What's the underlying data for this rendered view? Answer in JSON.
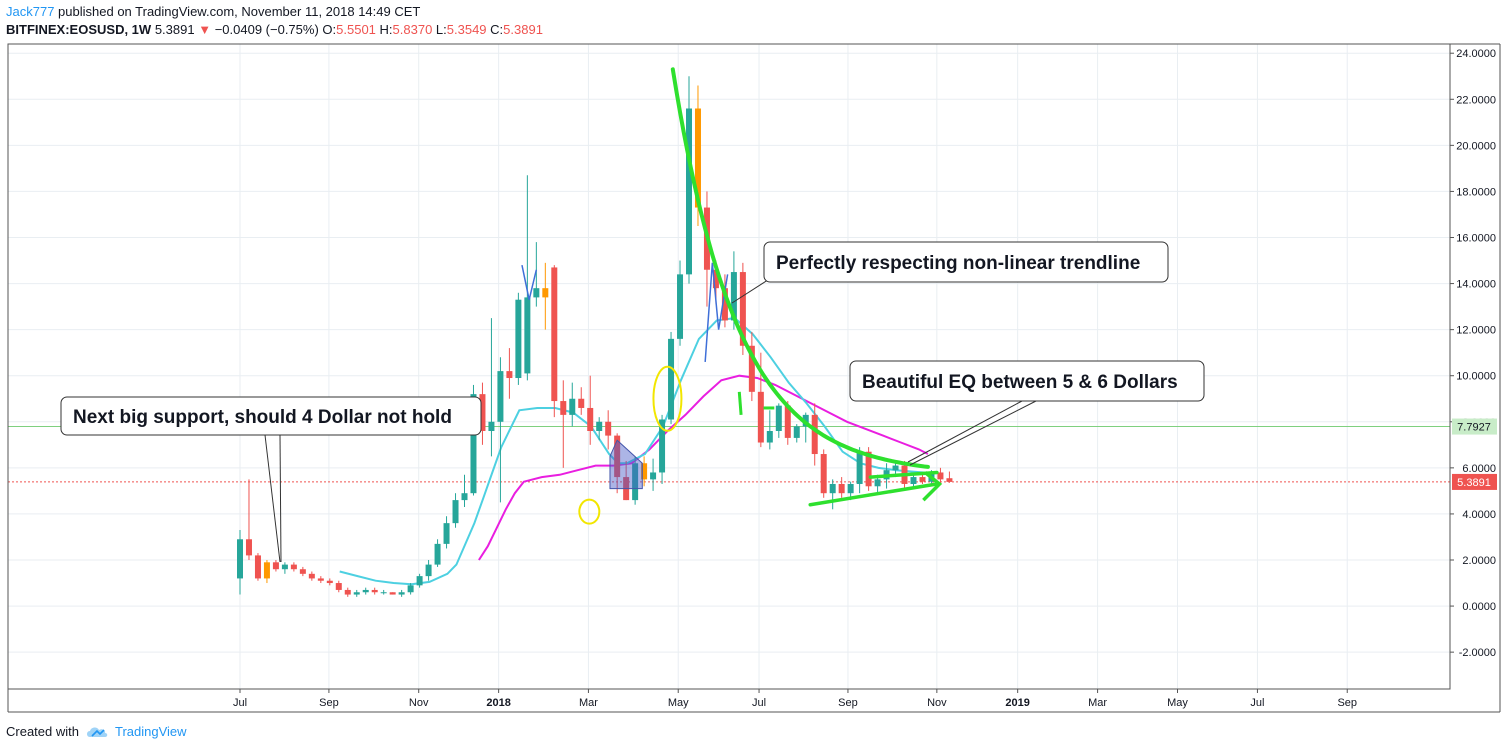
{
  "header": {
    "author": "Jack777",
    "published": "published on TradingView.com, November 11, 2018 14:49 CET",
    "symbol": "BITFINEX:EOSUSD, 1W",
    "last": "5.3891",
    "change": "−0.0409 (−0.75%)",
    "o_label": "O:",
    "o_value": "5.5501",
    "h_label": "H:",
    "h_value": "5.8370",
    "l_label": "L:",
    "l_value": "5.3549",
    "c_label": "C:",
    "c_value": "5.3891",
    "down_arrow_icon": "triangle-down-icon"
  },
  "footer": {
    "created_with": "Created with",
    "brand": "TradingView",
    "logo_icon": "tradingview-cloud-icon"
  },
  "price_labels": {
    "current": "5.3891",
    "support": "7.7927"
  },
  "annotations": {
    "support": "Next big support, should 4 Dollar not hold",
    "trendline": "Perfectly respecting non-linear trendline",
    "eq": "Beautiful EQ between 5 & 6 Dollars"
  },
  "colors": {
    "up": "#26a69a",
    "down": "#ef5350",
    "highlight": "#ff9800",
    "ma_short": "#4dd0e1",
    "ma_long": "#e91ee0",
    "trend": "#2ee02e",
    "grid": "#e9eef2"
  },
  "chart_data": {
    "type": "candlestick",
    "ylim": [
      -3.6,
      24.4
    ],
    "y_ticks": [
      -2,
      0,
      2,
      4,
      6,
      8,
      10,
      12,
      14,
      16,
      18,
      20,
      22,
      24
    ],
    "y_tick_labels": [
      "-2.0000",
      "0.0000",
      "2.0000",
      "4.0000",
      "6.0000",
      "8.0000",
      "10.0000",
      "12.0000",
      "14.0000",
      "16.0000",
      "18.0000",
      "20.0000",
      "22.0000",
      "24.0000"
    ],
    "x_ticks": [
      {
        "label": "Jul",
        "week": 0
      },
      {
        "label": "Sep",
        "week": 9.9
      },
      {
        "label": "Nov",
        "week": 19.9
      },
      {
        "label": "2018",
        "week": 28.8
      },
      {
        "label": "Mar",
        "week": 38.8
      },
      {
        "label": "May",
        "week": 48.8
      },
      {
        "label": "Jul",
        "week": 57.8
      },
      {
        "label": "Sep",
        "week": 67.7
      },
      {
        "label": "Nov",
        "week": 77.6
      },
      {
        "label": "2019",
        "week": 86.6
      },
      {
        "label": "Mar",
        "week": 95.5
      },
      {
        "label": "May",
        "week": 104.4
      },
      {
        "label": "Jul",
        "week": 113.3
      },
      {
        "label": "Sep",
        "week": 123.3
      }
    ],
    "candles": [
      {
        "o": 1.2,
        "h": 3.3,
        "l": 0.5,
        "c": 2.9
      },
      {
        "o": 2.9,
        "h": 5.5,
        "l": 2.0,
        "c": 2.2
      },
      {
        "o": 2.2,
        "h": 2.3,
        "l": 1.1,
        "c": 1.2
      },
      {
        "o": 1.2,
        "h": 2.0,
        "l": 1.0,
        "c": 1.9
      },
      {
        "o": 1.9,
        "h": 2.0,
        "l": 1.5,
        "c": 1.6
      },
      {
        "o": 1.6,
        "h": 1.9,
        "l": 1.4,
        "c": 1.8
      },
      {
        "o": 1.8,
        "h": 1.9,
        "l": 1.5,
        "c": 1.6
      },
      {
        "o": 1.6,
        "h": 1.7,
        "l": 1.3,
        "c": 1.4
      },
      {
        "o": 1.4,
        "h": 1.5,
        "l": 1.1,
        "c": 1.2
      },
      {
        "o": 1.2,
        "h": 1.3,
        "l": 1.0,
        "c": 1.1
      },
      {
        "o": 1.1,
        "h": 1.2,
        "l": 0.9,
        "c": 1.0
      },
      {
        "o": 1.0,
        "h": 1.1,
        "l": 0.6,
        "c": 0.7
      },
      {
        "o": 0.7,
        "h": 0.8,
        "l": 0.4,
        "c": 0.5
      },
      {
        "o": 0.5,
        "h": 0.7,
        "l": 0.4,
        "c": 0.6
      },
      {
        "o": 0.6,
        "h": 0.8,
        "l": 0.5,
        "c": 0.7
      },
      {
        "o": 0.7,
        "h": 0.8,
        "l": 0.5,
        "c": 0.6
      },
      {
        "o": 0.6,
        "h": 0.7,
        "l": 0.5,
        "c": 0.6
      },
      {
        "o": 0.6,
        "h": 0.6,
        "l": 0.5,
        "c": 0.5
      },
      {
        "o": 0.5,
        "h": 0.7,
        "l": 0.4,
        "c": 0.6
      },
      {
        "o": 0.6,
        "h": 1.0,
        "l": 0.5,
        "c": 0.9
      },
      {
        "o": 0.9,
        "h": 1.4,
        "l": 0.8,
        "c": 1.3
      },
      {
        "o": 1.3,
        "h": 2.0,
        "l": 1.1,
        "c": 1.8
      },
      {
        "o": 1.8,
        "h": 2.9,
        "l": 1.7,
        "c": 2.7
      },
      {
        "o": 2.7,
        "h": 3.9,
        "l": 2.5,
        "c": 3.6
      },
      {
        "o": 3.6,
        "h": 4.9,
        "l": 3.4,
        "c": 4.6
      },
      {
        "o": 4.6,
        "h": 5.7,
        "l": 4.3,
        "c": 4.9
      },
      {
        "o": 4.9,
        "h": 9.6,
        "l": 4.8,
        "c": 9.2
      },
      {
        "o": 9.2,
        "h": 9.7,
        "l": 7.0,
        "c": 7.6
      },
      {
        "o": 7.6,
        "h": 12.5,
        "l": 6.5,
        "c": 8.0
      },
      {
        "o": 8.0,
        "h": 10.8,
        "l": 4.5,
        "c": 10.2
      },
      {
        "o": 10.2,
        "h": 11.2,
        "l": 9.0,
        "c": 9.9
      },
      {
        "o": 9.9,
        "h": 13.6,
        "l": 9.6,
        "c": 13.3
      },
      {
        "o": 10.1,
        "h": 18.7,
        "l": 9.8,
        "c": 13.4
      },
      {
        "o": 13.4,
        "h": 15.8,
        "l": 13.0,
        "c": 13.8
      },
      {
        "o": 13.8,
        "h": 14.9,
        "l": 12.0,
        "c": 13.4
      },
      {
        "o": 14.7,
        "h": 14.8,
        "l": 8.2,
        "c": 8.9
      },
      {
        "o": 8.9,
        "h": 9.8,
        "l": 6.0,
        "c": 8.3
      },
      {
        "o": 8.3,
        "h": 9.7,
        "l": 7.8,
        "c": 9.0
      },
      {
        "o": 9.0,
        "h": 9.5,
        "l": 8.3,
        "c": 8.6
      },
      {
        "o": 8.6,
        "h": 10.0,
        "l": 7.0,
        "c": 7.6
      },
      {
        "o": 7.6,
        "h": 8.2,
        "l": 7.2,
        "c": 8.0
      },
      {
        "o": 8.0,
        "h": 8.5,
        "l": 6.8,
        "c": 7.4
      },
      {
        "o": 7.4,
        "h": 7.5,
        "l": 4.9,
        "c": 5.6
      },
      {
        "o": 5.6,
        "h": 6.3,
        "l": 4.6,
        "c": 4.6
      },
      {
        "o": 4.6,
        "h": 6.5,
        "l": 4.4,
        "c": 6.2
      },
      {
        "o": 6.2,
        "h": 6.5,
        "l": 5.2,
        "c": 5.5
      },
      {
        "o": 5.5,
        "h": 6.4,
        "l": 5.0,
        "c": 5.8
      },
      {
        "o": 5.8,
        "h": 8.3,
        "l": 5.3,
        "c": 8.1
      },
      {
        "o": 8.1,
        "h": 11.9,
        "l": 7.9,
        "c": 11.6
      },
      {
        "o": 11.6,
        "h": 15.0,
        "l": 11.3,
        "c": 14.4
      },
      {
        "o": 14.4,
        "h": 23.0,
        "l": 14.0,
        "c": 21.6
      },
      {
        "o": 21.6,
        "h": 22.6,
        "l": 16.5,
        "c": 17.3
      },
      {
        "o": 17.3,
        "h": 18.0,
        "l": 13.0,
        "c": 14.6
      },
      {
        "o": 14.6,
        "h": 15.0,
        "l": 13.1,
        "c": 13.8
      },
      {
        "o": 13.8,
        "h": 14.4,
        "l": 12.1,
        "c": 12.4
      },
      {
        "o": 12.4,
        "h": 15.4,
        "l": 12.0,
        "c": 14.5
      },
      {
        "o": 14.5,
        "h": 14.9,
        "l": 10.9,
        "c": 11.3
      },
      {
        "o": 11.3,
        "h": 11.9,
        "l": 8.9,
        "c": 9.3
      },
      {
        "o": 9.3,
        "h": 11.0,
        "l": 6.9,
        "c": 7.1
      },
      {
        "o": 7.1,
        "h": 8.5,
        "l": 6.8,
        "c": 7.6
      },
      {
        "o": 7.6,
        "h": 8.8,
        "l": 7.3,
        "c": 8.7
      },
      {
        "o": 8.7,
        "h": 8.9,
        "l": 7.0,
        "c": 7.3
      },
      {
        "o": 7.3,
        "h": 7.9,
        "l": 7.1,
        "c": 7.8
      },
      {
        "o": 7.8,
        "h": 8.4,
        "l": 7.1,
        "c": 8.3
      },
      {
        "o": 8.3,
        "h": 8.8,
        "l": 6.1,
        "c": 6.6
      },
      {
        "o": 6.6,
        "h": 6.8,
        "l": 4.7,
        "c": 4.9
      },
      {
        "o": 4.9,
        "h": 5.5,
        "l": 4.2,
        "c": 5.3
      },
      {
        "o": 5.3,
        "h": 5.6,
        "l": 4.7,
        "c": 4.9
      },
      {
        "o": 4.9,
        "h": 5.4,
        "l": 4.6,
        "c": 5.3
      },
      {
        "o": 5.3,
        "h": 6.9,
        "l": 4.9,
        "c": 6.7
      },
      {
        "o": 6.7,
        "h": 6.9,
        "l": 5.0,
        "c": 5.2
      },
      {
        "o": 5.2,
        "h": 5.7,
        "l": 4.9,
        "c": 5.5
      },
      {
        "o": 5.5,
        "h": 6.2,
        "l": 5.1,
        "c": 5.9
      },
      {
        "o": 5.9,
        "h": 6.3,
        "l": 5.6,
        "c": 6.1
      },
      {
        "o": 6.1,
        "h": 6.3,
        "l": 5.1,
        "c": 5.3
      },
      {
        "o": 5.3,
        "h": 5.8,
        "l": 5.1,
        "c": 5.6
      },
      {
        "o": 5.6,
        "h": 5.7,
        "l": 5.3,
        "c": 5.4
      },
      {
        "o": 5.4,
        "h": 5.9,
        "l": 5.3,
        "c": 5.8
      },
      {
        "o": 5.8,
        "h": 6.0,
        "l": 5.3,
        "c": 5.5
      },
      {
        "o": 5.55,
        "h": 5.84,
        "l": 5.35,
        "c": 5.39
      }
    ],
    "highlighted_candles": [
      3,
      34,
      45,
      51
    ],
    "ma_short": [
      [
        11.1,
        1.5
      ],
      [
        13.1,
        1.3
      ],
      [
        15.1,
        1.1
      ],
      [
        17.1,
        1.0
      ],
      [
        19.1,
        0.95
      ],
      [
        21.1,
        1.05
      ],
      [
        23.1,
        1.4
      ],
      [
        24.1,
        1.8
      ],
      [
        25.1,
        2.7
      ],
      [
        26.1,
        3.6
      ],
      [
        27.1,
        4.7
      ],
      [
        28.1,
        5.8
      ],
      [
        29.1,
        6.9
      ],
      [
        30.1,
        7.7
      ],
      [
        31.1,
        8.5
      ],
      [
        33.1,
        8.6
      ],
      [
        35.1,
        8.6
      ],
      [
        37.1,
        8.4
      ],
      [
        39.1,
        7.8
      ],
      [
        41.1,
        6.6
      ],
      [
        42.1,
        6.2
      ],
      [
        43.1,
        6.2
      ],
      [
        45.1,
        6.6
      ],
      [
        47.1,
        7.8
      ],
      [
        49.1,
        9.8
      ],
      [
        51.1,
        11.6
      ],
      [
        53.1,
        12.4
      ],
      [
        55.1,
        12.5
      ],
      [
        57.1,
        11.8
      ],
      [
        59.1,
        10.8
      ],
      [
        61.1,
        9.7
      ],
      [
        63.1,
        8.8
      ],
      [
        65.1,
        7.8
      ],
      [
        67.1,
        6.7
      ],
      [
        69.1,
        6.2
      ],
      [
        71.1,
        6.0
      ],
      [
        73.1,
        5.9
      ],
      [
        76.1,
        5.8
      ],
      [
        77.1,
        5.75
      ]
    ],
    "ma_long": [
      [
        26.6,
        2.0
      ],
      [
        27.6,
        2.6
      ],
      [
        28.6,
        3.4
      ],
      [
        29.6,
        4.2
      ],
      [
        30.6,
        4.9
      ],
      [
        31.6,
        5.4
      ],
      [
        33.6,
        5.6
      ],
      [
        35.6,
        5.7
      ],
      [
        37.6,
        5.9
      ],
      [
        39.6,
        6.1
      ],
      [
        41.6,
        6.1
      ],
      [
        43.6,
        6.2
      ],
      [
        45.6,
        6.8
      ],
      [
        47.6,
        7.6
      ],
      [
        49.6,
        8.3
      ],
      [
        51.6,
        9.1
      ],
      [
        53.6,
        9.8
      ],
      [
        55.6,
        10.0
      ],
      [
        57.6,
        9.9
      ],
      [
        59.6,
        9.6
      ],
      [
        61.6,
        9.2
      ],
      [
        63.6,
        8.8
      ],
      [
        65.6,
        8.4
      ],
      [
        67.6,
        8.0
      ],
      [
        69.6,
        7.7
      ],
      [
        71.6,
        7.4
      ],
      [
        73.6,
        7.1
      ],
      [
        75.6,
        6.8
      ],
      [
        76.6,
        6.6
      ]
    ],
    "current_price": 5.3891,
    "support_level": 7.7927
  }
}
